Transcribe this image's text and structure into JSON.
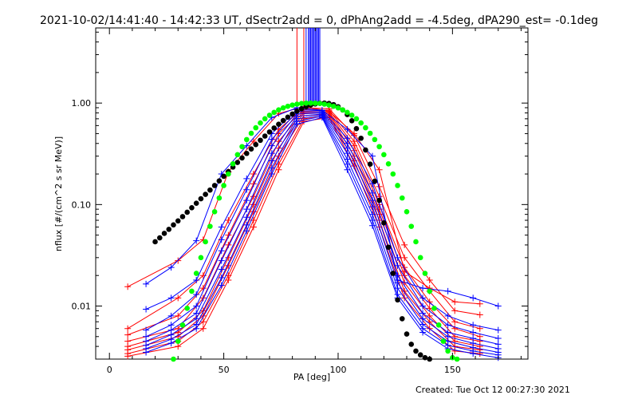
{
  "header": {
    "title": "2021-10-02/14:41:40 - 14:42:33 UT, dSectr2add = 0, dPhAng2add = -4.5deg, dPA290_est= -0.1deg"
  },
  "footer": {
    "created": "Created: Tue Oct 12 00:27:30 2021"
  },
  "chart_data": {
    "type": "line",
    "title": "2021-10-02/14:41:40 - 14:42:33 UT, dSectr2add = 0, dPhAng2add = -4.5deg, dPA290_est= -0.1deg",
    "xlabel": "PA [deg]",
    "ylabel": "nflux [#/(cm^2 s sr MeV)]",
    "xlim": [
      -6,
      183
    ],
    "ylim": [
      0.003,
      5.5
    ],
    "yscale": "log",
    "grid": false,
    "x_ticks": [
      0,
      50,
      100,
      150
    ],
    "y_ticks": [
      {
        "value": 0.01,
        "label": "0.01"
      },
      {
        "value": 0.1,
        "label": "0.10"
      },
      {
        "value": 1.0,
        "label": "1.00"
      }
    ],
    "colors": {
      "red": "#ff0000",
      "blue": "#0000ff",
      "green": "#00ff00",
      "black": "#000000"
    },
    "pa_bins_red": [
      8,
      30,
      41,
      52,
      63,
      74,
      85,
      96,
      107,
      118,
      129,
      140,
      151,
      162
    ],
    "pa_bins_blue": [
      16,
      27,
      38,
      49,
      60,
      71,
      82,
      93,
      104,
      115,
      126,
      137,
      148,
      159,
      170
    ],
    "series": [
      {
        "color": "red",
        "marker": "plus",
        "x": [
          8,
          30,
          41,
          52,
          63,
          74,
          85,
          96,
          107,
          118,
          129,
          140,
          151,
          162
        ],
        "y": [
          0.0155,
          0.028,
          0.045,
          0.21,
          0.42,
          0.79,
          0.92,
          0.83,
          0.5,
          0.22,
          0.022,
          0.015,
          0.011,
          0.0105
        ]
      },
      {
        "color": "red",
        "marker": "plus",
        "x": [
          8,
          30,
          41,
          52,
          63,
          74,
          85,
          96,
          107,
          118,
          129,
          140,
          151,
          162
        ],
        "y": [
          0.006,
          0.012,
          0.02,
          0.07,
          0.2,
          0.55,
          0.9,
          0.88,
          0.48,
          0.15,
          0.04,
          0.018,
          0.009,
          0.0082
        ]
      },
      {
        "color": "red",
        "marker": "plus",
        "x": [
          8,
          30,
          41,
          52,
          63,
          74,
          85,
          96,
          107,
          118,
          129,
          140,
          151,
          162
        ],
        "y": [
          0.0052,
          0.008,
          0.015,
          0.05,
          0.16,
          0.5,
          0.86,
          0.85,
          0.42,
          0.12,
          0.03,
          0.014,
          0.007,
          0.006
        ]
      },
      {
        "color": "red",
        "marker": "plus",
        "x": [
          8,
          30,
          41,
          52,
          63,
          74,
          85,
          96,
          107,
          118,
          129,
          140,
          151,
          162
        ],
        "y": [
          0.0045,
          0.006,
          0.012,
          0.04,
          0.12,
          0.42,
          0.83,
          0.82,
          0.38,
          0.1,
          0.024,
          0.011,
          0.006,
          0.005
        ]
      },
      {
        "color": "red",
        "marker": "plus",
        "x": [
          8,
          30,
          41,
          52,
          63,
          74,
          85,
          96,
          107,
          118,
          129,
          140,
          151,
          162
        ],
        "y": [
          0.004,
          0.0055,
          0.009,
          0.03,
          0.1,
          0.36,
          0.8,
          0.8,
          0.34,
          0.09,
          0.02,
          0.0095,
          0.005,
          0.0045
        ]
      },
      {
        "color": "red",
        "marker": "plus",
        "x": [
          8,
          30,
          41,
          52,
          63,
          74,
          85,
          96,
          107,
          118,
          129,
          140,
          151,
          162
        ],
        "y": [
          0.0037,
          0.005,
          0.008,
          0.025,
          0.085,
          0.3,
          0.75,
          0.78,
          0.3,
          0.08,
          0.017,
          0.008,
          0.0045,
          0.004
        ]
      },
      {
        "color": "red",
        "marker": "plus",
        "x": [
          8,
          30,
          41,
          52,
          63,
          74,
          85,
          96,
          107,
          118,
          129,
          140,
          151,
          162
        ],
        "y": [
          0.0034,
          0.0045,
          0.007,
          0.02,
          0.07,
          0.25,
          0.7,
          0.75,
          0.27,
          0.07,
          0.014,
          0.007,
          0.004,
          0.0037
        ]
      },
      {
        "color": "red",
        "marker": "plus",
        "x": [
          8,
          30,
          41,
          52,
          63,
          74,
          85,
          96,
          107,
          118,
          129,
          140,
          151,
          162
        ],
        "y": [
          0.0032,
          0.004,
          0.006,
          0.018,
          0.06,
          0.22,
          0.66,
          0.72,
          0.24,
          0.06,
          0.012,
          0.006,
          0.0036,
          0.0034
        ]
      },
      {
        "color": "blue",
        "marker": "plus",
        "x": [
          16,
          27,
          38,
          49,
          60,
          71,
          82,
          93,
          104,
          115,
          126,
          137,
          148,
          159,
          170
        ],
        "y": [
          0.0165,
          0.024,
          0.044,
          0.2,
          0.38,
          0.72,
          0.9,
          0.85,
          0.55,
          0.3,
          0.018,
          0.015,
          0.014,
          0.012,
          0.01
        ]
      },
      {
        "color": "blue",
        "marker": "plus",
        "x": [
          16,
          27,
          38,
          49,
          60,
          71,
          82,
          93,
          104,
          115,
          126,
          137,
          148,
          159,
          170
        ],
        "y": [
          0.0093,
          0.012,
          0.018,
          0.06,
          0.18,
          0.5,
          0.86,
          0.84,
          0.45,
          0.16,
          0.03,
          0.012,
          0.008,
          0.0065,
          0.0058
        ]
      },
      {
        "color": "blue",
        "marker": "plus",
        "x": [
          16,
          27,
          38,
          49,
          60,
          71,
          82,
          93,
          104,
          115,
          126,
          137,
          148,
          159,
          170
        ],
        "y": [
          0.0058,
          0.008,
          0.013,
          0.045,
          0.14,
          0.44,
          0.82,
          0.82,
          0.4,
          0.13,
          0.025,
          0.01,
          0.0065,
          0.0055,
          0.0048
        ]
      },
      {
        "color": "blue",
        "marker": "plus",
        "x": [
          16,
          27,
          38,
          49,
          60,
          71,
          82,
          93,
          104,
          115,
          126,
          137,
          148,
          159,
          170
        ],
        "y": [
          0.005,
          0.0065,
          0.01,
          0.035,
          0.11,
          0.38,
          0.78,
          0.8,
          0.36,
          0.11,
          0.02,
          0.0085,
          0.0055,
          0.0048,
          0.0042
        ]
      },
      {
        "color": "blue",
        "marker": "plus",
        "x": [
          16,
          27,
          38,
          49,
          60,
          71,
          82,
          93,
          104,
          115,
          126,
          137,
          148,
          159,
          170
        ],
        "y": [
          0.0045,
          0.0058,
          0.0085,
          0.028,
          0.09,
          0.32,
          0.74,
          0.78,
          0.32,
          0.095,
          0.017,
          0.0075,
          0.005,
          0.0043,
          0.0038
        ]
      },
      {
        "color": "blue",
        "marker": "plus",
        "x": [
          16,
          27,
          38,
          49,
          60,
          71,
          82,
          93,
          104,
          115,
          126,
          137,
          148,
          159,
          170
        ],
        "y": [
          0.0041,
          0.0052,
          0.0075,
          0.023,
          0.075,
          0.27,
          0.7,
          0.76,
          0.28,
          0.08,
          0.015,
          0.0066,
          0.0045,
          0.0039,
          0.0035
        ]
      },
      {
        "color": "blue",
        "marker": "plus",
        "x": [
          16,
          27,
          38,
          49,
          60,
          71,
          82,
          93,
          104,
          115,
          126,
          137,
          148,
          159,
          170
        ],
        "y": [
          0.0038,
          0.0047,
          0.0066,
          0.019,
          0.063,
          0.23,
          0.66,
          0.74,
          0.25,
          0.07,
          0.013,
          0.006,
          0.0041,
          0.0036,
          0.0033
        ]
      },
      {
        "color": "blue",
        "marker": "plus",
        "x": [
          16,
          27,
          38,
          49,
          60,
          71,
          82,
          93,
          104,
          115,
          126,
          137,
          148,
          159,
          170
        ],
        "y": [
          0.0035,
          0.0043,
          0.006,
          0.016,
          0.055,
          0.2,
          0.62,
          0.72,
          0.22,
          0.062,
          0.012,
          0.0055,
          0.0038,
          0.0034,
          0.0031
        ]
      },
      {
        "color": "black",
        "marker": "dot",
        "x": [
          20,
          22,
          24,
          26,
          28,
          30,
          32,
          34,
          36,
          38,
          40,
          42,
          44,
          46,
          48,
          50,
          52,
          54,
          56,
          58,
          60,
          62,
          64,
          66,
          68,
          70,
          72,
          74,
          76,
          78,
          80,
          82,
          84,
          86,
          88,
          90,
          92,
          94,
          96,
          98,
          100,
          102,
          104,
          106,
          108,
          110,
          112,
          114,
          116,
          118,
          120,
          122,
          124,
          126,
          128,
          130,
          132,
          134,
          136,
          138,
          140,
          142,
          144
        ],
        "y": [
          0.043,
          0.047,
          0.052,
          0.057,
          0.063,
          0.069,
          0.076,
          0.084,
          0.093,
          0.103,
          0.114,
          0.126,
          0.139,
          0.154,
          0.171,
          0.19,
          0.211,
          0.234,
          0.26,
          0.288,
          0.319,
          0.353,
          0.39,
          0.43,
          0.473,
          0.519,
          0.568,
          0.619,
          0.672,
          0.726,
          0.78,
          0.832,
          0.88,
          0.92,
          0.955,
          0.98,
          0.995,
          1.0,
          0.99,
          0.965,
          0.92,
          0.855,
          0.77,
          0.67,
          0.56,
          0.45,
          0.345,
          0.25,
          0.17,
          0.11,
          0.066,
          0.038,
          0.021,
          0.0115,
          0.0075,
          0.0053,
          0.0042,
          0.0036,
          0.0033,
          0.0031,
          0.003,
          0.0029,
          0.0028
        ]
      },
      {
        "color": "green",
        "marker": "dot",
        "x": [
          28,
          30,
          32,
          34,
          36,
          38,
          40,
          42,
          44,
          46,
          48,
          50,
          52,
          54,
          56,
          58,
          60,
          62,
          64,
          66,
          68,
          70,
          72,
          74,
          76,
          78,
          80,
          82,
          84,
          86,
          88,
          90,
          92,
          94,
          96,
          98,
          100,
          102,
          104,
          106,
          108,
          110,
          112,
          114,
          116,
          118,
          120,
          122,
          124,
          126,
          128,
          130,
          132,
          134,
          136,
          138,
          140,
          142,
          144,
          146,
          148,
          150,
          152
        ],
        "y": [
          0.003,
          0.0045,
          0.0065,
          0.0095,
          0.014,
          0.021,
          0.03,
          0.043,
          0.061,
          0.085,
          0.116,
          0.154,
          0.2,
          0.252,
          0.31,
          0.372,
          0.437,
          0.504,
          0.571,
          0.637,
          0.7,
          0.758,
          0.81,
          0.857,
          0.897,
          0.93,
          0.956,
          0.976,
          0.99,
          0.998,
          1.0,
          0.998,
          0.99,
          0.976,
          0.956,
          0.93,
          0.897,
          0.857,
          0.81,
          0.758,
          0.7,
          0.637,
          0.571,
          0.504,
          0.437,
          0.372,
          0.31,
          0.252,
          0.2,
          0.154,
          0.116,
          0.085,
          0.061,
          0.043,
          0.03,
          0.021,
          0.014,
          0.0095,
          0.0065,
          0.0045,
          0.0036,
          0.0031,
          0.003
        ]
      }
    ],
    "vertical_lines": [
      {
        "color": "red",
        "x": [
          82,
          85
        ]
      },
      {
        "color": "blue",
        "x": [
          86,
          87,
          87.5,
          88,
          88.5,
          89,
          89.5,
          90,
          90.5,
          91,
          91.5,
          92
        ]
      }
    ]
  }
}
